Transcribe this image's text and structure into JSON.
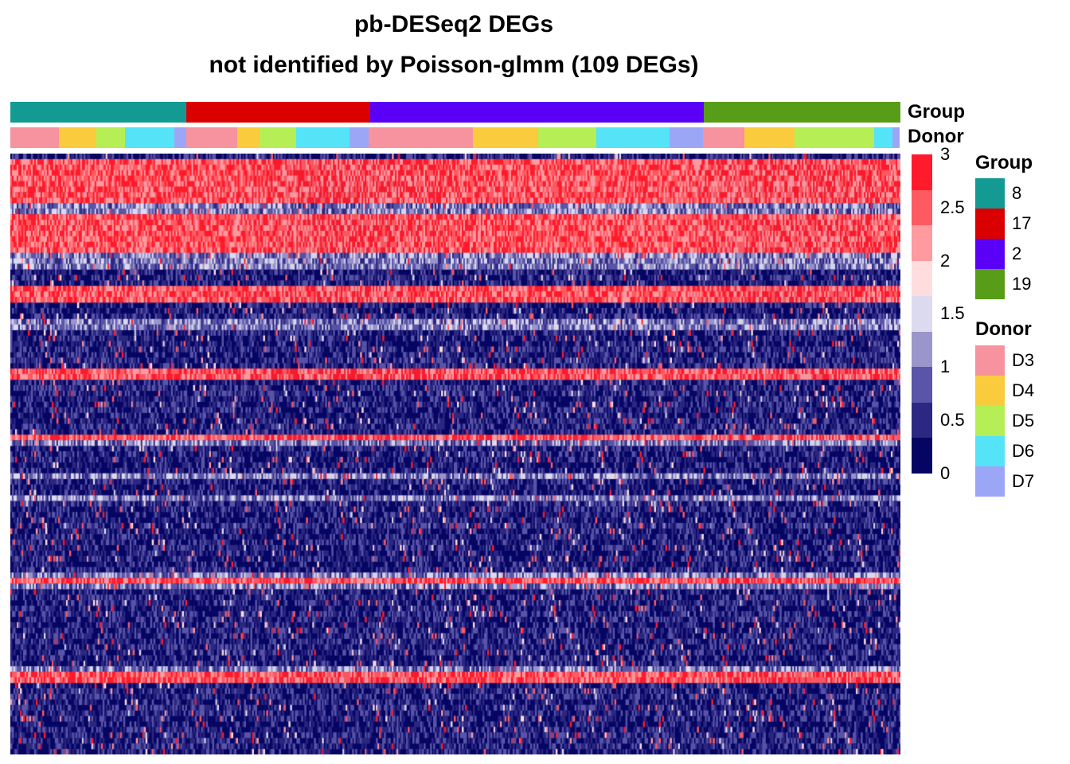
{
  "title": "pb-DESeq2 DEGs",
  "subtitle": "not identified by Poisson-glmm (109 DEGs)",
  "chart_data": {
    "type": "heatmap",
    "title": "pb-DESeq2 DEGs",
    "subtitle": "not identified by Poisson-glmm (109 DEGs)",
    "n_genes": 109,
    "column_annotations": {
      "Group": {
        "label": "Group",
        "segments": [
          {
            "value": "8",
            "fraction": 0.198
          },
          {
            "value": "17",
            "fraction": 0.206
          },
          {
            "value": "2",
            "fraction": 0.375
          },
          {
            "value": "19",
            "fraction": 0.221
          }
        ]
      },
      "Donor": {
        "label": "Donor",
        "segments": [
          {
            "value": "D3",
            "fraction": 0.055
          },
          {
            "value": "D4",
            "fraction": 0.042
          },
          {
            "value": "D5",
            "fraction": 0.032
          },
          {
            "value": "D6",
            "fraction": 0.055
          },
          {
            "value": "D7",
            "fraction": 0.014
          },
          {
            "value": "D3",
            "fraction": 0.057
          },
          {
            "value": "D4",
            "fraction": 0.025
          },
          {
            "value": "D5",
            "fraction": 0.041
          },
          {
            "value": "D6",
            "fraction": 0.06
          },
          {
            "value": "D7",
            "fraction": 0.022
          },
          {
            "value": "D3",
            "fraction": 0.117
          },
          {
            "value": "D4",
            "fraction": 0.073
          },
          {
            "value": "D5",
            "fraction": 0.065
          },
          {
            "value": "D6",
            "fraction": 0.083
          },
          {
            "value": "D7",
            "fraction": 0.037
          },
          {
            "value": "D3",
            "fraction": 0.047
          },
          {
            "value": "D4",
            "fraction": 0.056
          },
          {
            "value": "D5",
            "fraction": 0.09
          },
          {
            "value": "D6",
            "fraction": 0.02
          },
          {
            "value": "D7",
            "fraction": 0.008
          }
        ]
      }
    },
    "color_scale": {
      "ticks": [
        "3",
        "2.5",
        "2",
        "1.5",
        "1",
        "0.5",
        "0"
      ],
      "min": 0,
      "max": 3,
      "colors": [
        "#FF1B2C",
        "#FF5A62",
        "#FF9AA0",
        "#FFDCDE",
        "#DCDAEE",
        "#9A96CB",
        "#5A55A8",
        "#2C2882",
        "#050563"
      ]
    },
    "high_expression_rows": [
      1,
      2,
      3,
      4,
      5,
      6,
      7,
      8,
      11,
      12,
      13,
      14,
      15,
      16,
      17,
      24,
      25,
      26,
      39,
      40,
      51,
      77,
      94,
      95
    ],
    "moderate_expression_rows": [
      9,
      10,
      18,
      19,
      20,
      30,
      31,
      52,
      58,
      62,
      76,
      78,
      93
    ],
    "legends": {
      "group": {
        "title": "Group",
        "items": [
          {
            "label": "8",
            "color": "#139A93"
          },
          {
            "label": "17",
            "color": "#DB0000"
          },
          {
            "label": "2",
            "color": "#5B00F7"
          },
          {
            "label": "19",
            "color": "#579D18"
          }
        ]
      },
      "donor": {
        "title": "Donor",
        "items": [
          {
            "label": "D3",
            "color": "#F7929F"
          },
          {
            "label": "D4",
            "color": "#FACB3C"
          },
          {
            "label": "D5",
            "color": "#B6EE55"
          },
          {
            "label": "D6",
            "color": "#54E3F7"
          },
          {
            "label": "D7",
            "color": "#9CA6F7"
          }
        ]
      }
    }
  }
}
